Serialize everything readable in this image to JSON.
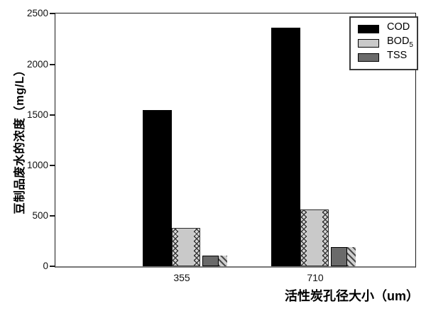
{
  "chart_data": {
    "type": "bar",
    "title": "",
    "categories": [
      "355",
      "710"
    ],
    "series": [
      {
        "name": "COD",
        "values": [
          1550,
          2360
        ],
        "color": "#000000",
        "style": "solid-black"
      },
      {
        "name": "BOD5",
        "values": [
          380,
          560
        ],
        "color": "#c9c9c9",
        "style": "light-gray-chevron-edges"
      },
      {
        "name": "TSS",
        "values": [
          105,
          190
        ],
        "color": "#6a6a6a",
        "style": "dark-gray-with-diagonal-hatch-strip"
      }
    ],
    "xlabel": "活性炭孔径大小（um）",
    "ylabel": "豆制品废水的浓度（mg/L）",
    "ylim": [
      0,
      2500
    ],
    "yticks": [
      0,
      500,
      1000,
      1500,
      2000,
      2500
    ],
    "grid": false,
    "legend_position": "top-right",
    "plot_background": "#ffffff"
  },
  "legend": {
    "items": [
      {
        "label": "COD",
        "sub": ""
      },
      {
        "label": "BOD",
        "sub": "5"
      },
      {
        "label": "TSS",
        "sub": ""
      }
    ]
  }
}
